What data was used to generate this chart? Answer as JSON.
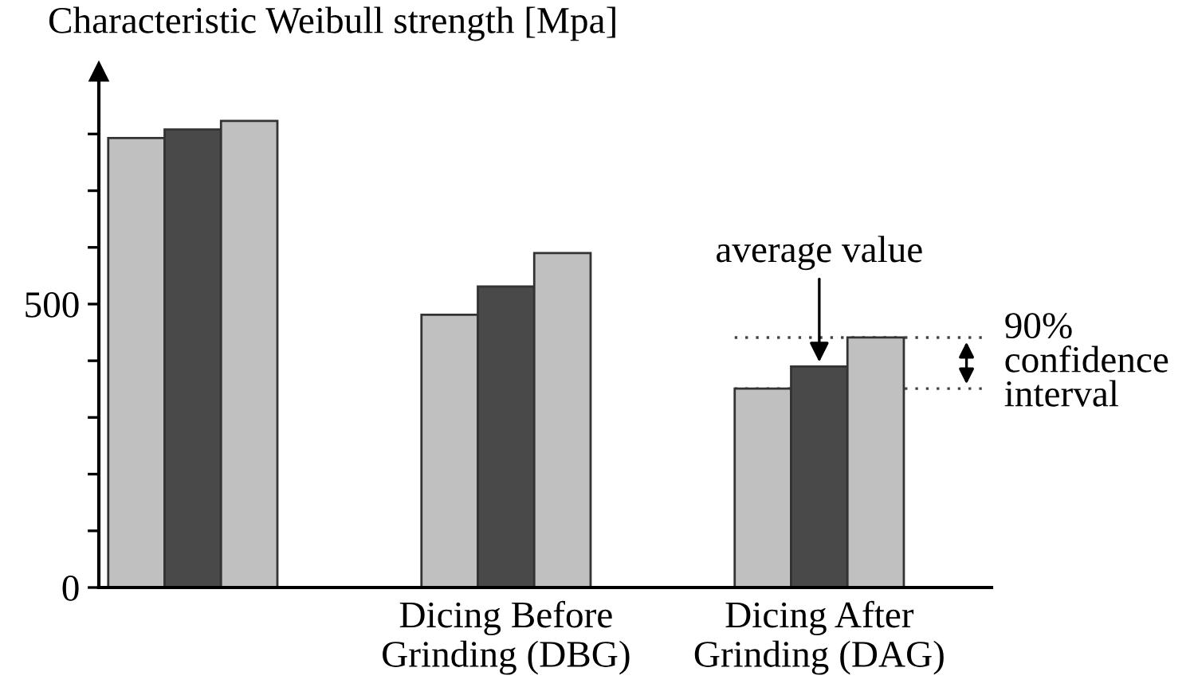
{
  "chart_data": {
    "type": "bar",
    "ylabel": "Characteristic Weibull strength [Mpa]",
    "categories": [
      null,
      "Dicing Before\nGrinding (DBG)",
      "Dicing After\nGrinding (DAG)"
    ],
    "series": [
      {
        "color": "#c0c0c0",
        "values": [
          793,
          481,
          351
        ]
      },
      {
        "color": "#494949",
        "values": [
          808,
          531,
          390
        ]
      },
      {
        "color": "#c0c0c0",
        "values": [
          823,
          590,
          441
        ]
      }
    ],
    "ylim": [
      0,
      910
    ],
    "yticks": [
      0,
      {
        "value": 100,
        "label": null
      },
      {
        "value": 200,
        "label": null
      },
      {
        "value": 300,
        "label": null
      },
      {
        "value": 400,
        "label": null
      },
      500,
      {
        "value": 600,
        "label": null
      },
      {
        "value": 700,
        "label": null
      },
      {
        "value": 800,
        "label": null
      }
    ],
    "grid": false,
    "legend": false,
    "annotations": [
      {
        "text": "average value",
        "x": "Dicing After\nGrinding (DAG)",
        "y": 390
      }
    ],
    "ref_lines": [
      {
        "axis": "y",
        "value": 441,
        "label": "90%\nconfidence\ninterval",
        "color": "#444444",
        "line_style": "dotted"
      },
      {
        "axis": "y",
        "value": 351,
        "color": "#444444",
        "line_style": "dotted"
      }
    ]
  }
}
